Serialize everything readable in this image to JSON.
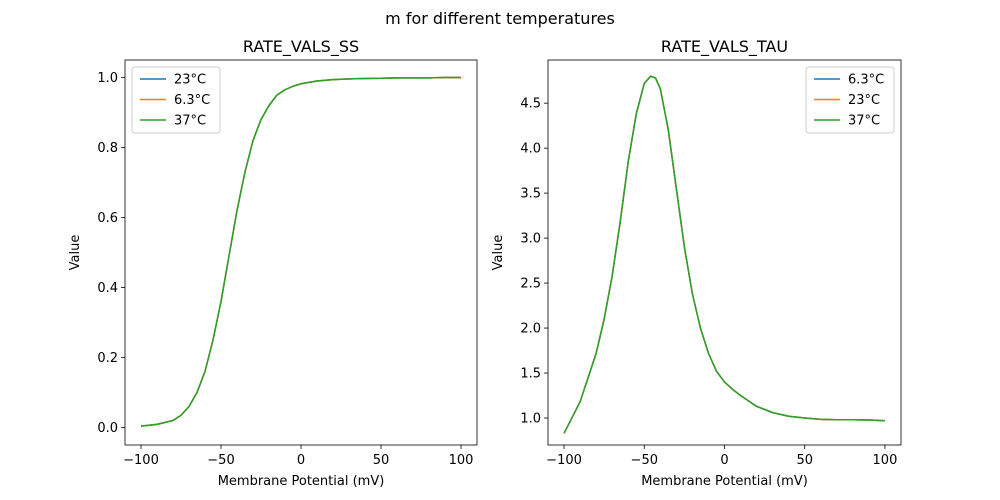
{
  "figure": {
    "title": "m for different temperatures"
  },
  "chart_data": [
    {
      "type": "line",
      "title": "RATE_VALS_SS",
      "xlabel": "Membrane Potential (mV)",
      "ylabel": "Value",
      "xlim": [
        -110,
        110
      ],
      "ylim": [
        -0.05,
        1.05
      ],
      "xticks": [
        -100,
        -50,
        0,
        50,
        100
      ],
      "yticks": [
        0.0,
        0.2,
        0.4,
        0.6,
        0.8,
        1.0
      ],
      "ytick_labels": [
        "0.0",
        "0.2",
        "0.4",
        "0.6",
        "0.8",
        "1.0"
      ],
      "legend": "top-left",
      "grid": false,
      "x": [
        -100,
        -90,
        -80,
        -75,
        -70,
        -65,
        -60,
        -55,
        -50,
        -45,
        -40,
        -35,
        -30,
        -25,
        -20,
        -15,
        -10,
        -5,
        0,
        10,
        20,
        30,
        40,
        50,
        60,
        70,
        80,
        90,
        100
      ],
      "series": [
        {
          "name": "23°C",
          "color": "#1f77b4",
          "values": [
            0.004,
            0.009,
            0.02,
            0.035,
            0.06,
            0.1,
            0.16,
            0.25,
            0.36,
            0.49,
            0.62,
            0.73,
            0.82,
            0.88,
            0.92,
            0.95,
            0.965,
            0.975,
            0.982,
            0.99,
            0.994,
            0.996,
            0.997,
            0.998,
            0.999,
            0.999,
            0.999,
            1.0,
            1.0
          ]
        },
        {
          "name": "6.3°C",
          "color": "#ff7f0e",
          "values": [
            0.004,
            0.009,
            0.02,
            0.035,
            0.06,
            0.1,
            0.16,
            0.25,
            0.36,
            0.49,
            0.62,
            0.73,
            0.82,
            0.88,
            0.92,
            0.95,
            0.965,
            0.975,
            0.982,
            0.99,
            0.994,
            0.996,
            0.997,
            0.998,
            0.999,
            0.999,
            0.999,
            1.0,
            1.0
          ]
        },
        {
          "name": "37°C",
          "color": "#2ca02c",
          "values": [
            0.004,
            0.009,
            0.02,
            0.035,
            0.06,
            0.1,
            0.16,
            0.25,
            0.36,
            0.49,
            0.62,
            0.73,
            0.82,
            0.88,
            0.92,
            0.95,
            0.965,
            0.975,
            0.982,
            0.99,
            0.994,
            0.996,
            0.997,
            0.998,
            0.999,
            0.999,
            0.999,
            1.0,
            1.0
          ]
        }
      ]
    },
    {
      "type": "line",
      "title": "RATE_VALS_TAU",
      "xlabel": "Membrane Potential (mV)",
      "ylabel": "Value",
      "xlim": [
        -110,
        110
      ],
      "ylim": [
        0.7,
        4.98
      ],
      "xticks": [
        -100,
        -50,
        0,
        50,
        100
      ],
      "yticks": [
        1.0,
        1.5,
        2.0,
        2.5,
        3.0,
        3.5,
        4.0,
        4.5
      ],
      "ytick_labels": [
        "1.0",
        "1.5",
        "2.0",
        "2.5",
        "3.0",
        "3.5",
        "4.0",
        "4.5"
      ],
      "legend": "top-right",
      "grid": false,
      "x": [
        -100,
        -90,
        -80,
        -75,
        -70,
        -65,
        -60,
        -55,
        -50,
        -46,
        -43,
        -40,
        -35,
        -30,
        -25,
        -20,
        -15,
        -10,
        -5,
        0,
        5,
        10,
        20,
        30,
        40,
        50,
        60,
        70,
        80,
        90,
        100
      ],
      "series": [
        {
          "name": "6.3°C",
          "color": "#1f77b4",
          "values": [
            0.83,
            1.18,
            1.72,
            2.1,
            2.58,
            3.18,
            3.85,
            4.38,
            4.72,
            4.8,
            4.78,
            4.66,
            4.2,
            3.55,
            2.9,
            2.38,
            2.0,
            1.72,
            1.52,
            1.4,
            1.32,
            1.25,
            1.13,
            1.06,
            1.02,
            1.0,
            0.985,
            0.98,
            0.98,
            0.978,
            0.97
          ]
        },
        {
          "name": "23°C",
          "color": "#ff7f0e",
          "values": [
            0.83,
            1.18,
            1.72,
            2.1,
            2.58,
            3.18,
            3.85,
            4.38,
            4.72,
            4.8,
            4.78,
            4.66,
            4.2,
            3.55,
            2.9,
            2.38,
            2.0,
            1.72,
            1.52,
            1.4,
            1.32,
            1.25,
            1.13,
            1.06,
            1.02,
            1.0,
            0.985,
            0.98,
            0.98,
            0.978,
            0.97
          ]
        },
        {
          "name": "37°C",
          "color": "#2ca02c",
          "values": [
            0.83,
            1.18,
            1.72,
            2.1,
            2.58,
            3.18,
            3.85,
            4.38,
            4.72,
            4.8,
            4.78,
            4.66,
            4.2,
            3.55,
            2.9,
            2.38,
            2.0,
            1.72,
            1.52,
            1.4,
            1.32,
            1.25,
            1.13,
            1.06,
            1.02,
            1.0,
            0.985,
            0.98,
            0.98,
            0.978,
            0.97
          ]
        }
      ]
    }
  ]
}
